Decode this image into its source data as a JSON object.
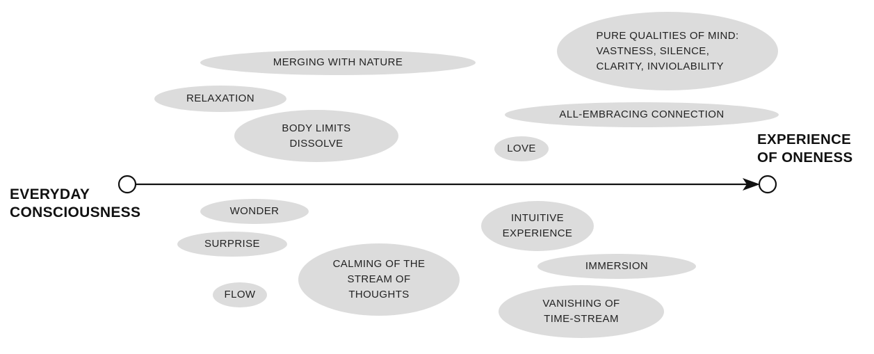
{
  "diagram": {
    "start_label": "EVERYDAY\nCONSCIOUSNESS",
    "end_label": "EXPERIENCE\nOF ONENESS",
    "bubbles": {
      "merging_with_nature": "MERGING WITH NATURE",
      "relaxation": "RELAXATION",
      "body_limits_dissolve": "BODY LIMITS\nDISSOLVE",
      "wonder": "WONDER",
      "surprise": "SURPRISE",
      "flow": "FLOW",
      "calming_thoughts": "CALMING OF THE\nSTREAM OF\nTHOUGHTS",
      "pure_qualities": "PURE QUALITIES OF MIND:\nVASTNESS, SILENCE,\nCLARITY, INVIOLABILITY",
      "all_embracing_connection": "ALL-EMBRACING CONNECTION",
      "love": "LOVE",
      "intuitive_experience": "INTUITIVE\nEXPERIENCE",
      "immersion": "IMMERSION",
      "vanishing_time_stream": "VANISHING OF\nTIME-STREAM"
    },
    "colors": {
      "bubble_fill": "#dcdcdc",
      "axis_line": "#111111"
    }
  }
}
